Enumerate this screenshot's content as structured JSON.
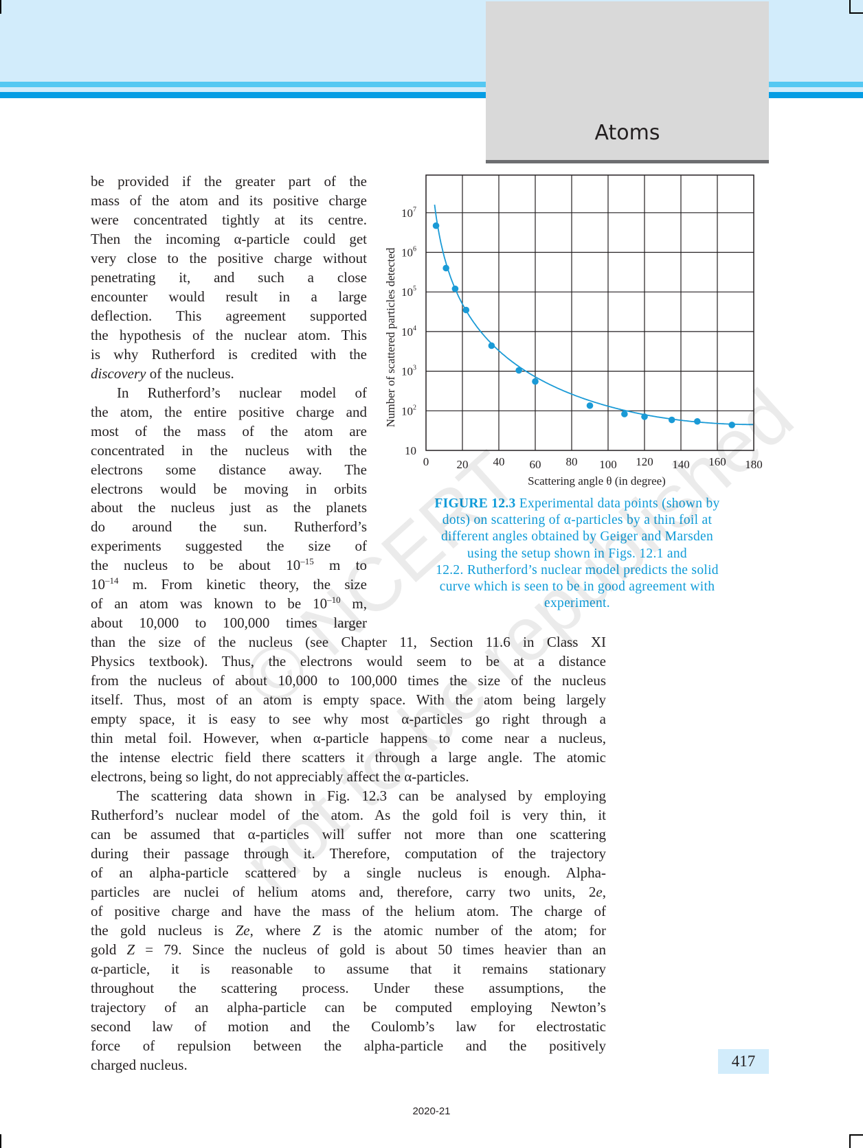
{
  "header": {
    "chapter_title": "Atoms",
    "band_color": "#d2ecfb",
    "stripe_color": "#049de4"
  },
  "watermark": {
    "line1": "© NCERT",
    "line2": "not to be republished"
  },
  "body_lines": [
    [
      [
        "be provided if the greater part of the"
      ]
    ],
    [
      [
        "mass of the atom and its positive charge"
      ]
    ],
    [
      [
        "were concentrated tightly at its centre."
      ]
    ],
    [
      [
        "Then the incoming α-particle could get"
      ]
    ],
    [
      [
        "very close to the positive charge without"
      ]
    ],
    [
      [
        "penetrating it, and such a close"
      ]
    ],
    [
      [
        "encounter would result in a large"
      ]
    ],
    [
      [
        "deflection. This agreement supported"
      ]
    ],
    [
      [
        "the hypothesis of the nuclear atom. This"
      ]
    ],
    [
      [
        "is why Rutherford is credited with the"
      ]
    ],
    [
      [
        "discovery",
        "i"
      ],
      [
        " of the nucleus."
      ]
    ],
    [
      [
        "In Rutherford’s nuclear model of"
      ]
    ],
    [
      [
        "the atom, the entire positive charge and"
      ]
    ],
    [
      [
        "most of the mass of the atom are"
      ]
    ],
    [
      [
        "concentrated in the nucleus with the"
      ]
    ],
    [
      [
        "electrons some distance away. The"
      ]
    ],
    [
      [
        "electrons would be moving in orbits"
      ]
    ],
    [
      [
        "about the nucleus just as the planets"
      ]
    ],
    [
      [
        "do around the sun. Rutherford’s"
      ]
    ],
    [
      [
        "experiments suggested the size of"
      ]
    ],
    [
      [
        "the nucleus to be about 10"
      ],
      [
        "–15",
        "s"
      ],
      [
        " m to"
      ]
    ],
    [
      [
        "10"
      ],
      [
        "–14",
        "s"
      ],
      [
        " m. From kinetic theory, the size"
      ]
    ],
    [
      [
        "of an atom was known to be 10"
      ],
      [
        "–10",
        "s"
      ],
      [
        " m,"
      ]
    ],
    [
      [
        "about 10,000 to 100,000 times larger"
      ]
    ],
    [
      [
        "than the size of the nucleus (see Chapter 11, Section 11.6 in Class XI"
      ]
    ],
    [
      [
        "Physics textbook). Thus, the electrons would seem to be at a distance"
      ]
    ],
    [
      [
        "from the nucleus of about 10,000 to 100,000 times the size of the nucleus"
      ]
    ],
    [
      [
        "itself. Thus, most of an atom is empty space. With the atom being largely"
      ]
    ],
    [
      [
        "empty space, it is easy to see why most α-particles go right through a"
      ]
    ],
    [
      [
        "thin metal foil. However, when α-particle happens to come near a nucleus,"
      ]
    ],
    [
      [
        "the intense electric field there scatters it through a large angle. The atomic"
      ]
    ],
    [
      [
        "electrons, being so light, do not appreciably affect the α-particles."
      ]
    ],
    [
      [
        "The scattering data shown in Fig. 12.3 can be analysed by employing"
      ]
    ],
    [
      [
        "Rutherford’s nuclear model of the atom. As the gold foil is very thin, it"
      ]
    ],
    [
      [
        "can be assumed that α-particles will suffer not more than one scattering"
      ]
    ],
    [
      [
        "during their passage through it. Therefore, computation of the trajectory"
      ]
    ],
    [
      [
        "of an alpha-particle scattered by a single nucleus is enough. Alpha-"
      ]
    ],
    [
      [
        "particles are nuclei of helium atoms and, therefore, carry two units, 2"
      ],
      [
        "e",
        "i"
      ],
      [
        ","
      ]
    ],
    [
      [
        "of positive charge and have the mass of the helium atom. The charge of"
      ]
    ],
    [
      [
        "the gold nucleus is "
      ],
      [
        "Ze",
        "i"
      ],
      [
        ", where "
      ],
      [
        "Z",
        "i"
      ],
      [
        " is the atomic number of the atom; for"
      ]
    ],
    [
      [
        "gold "
      ],
      [
        "Z",
        "i"
      ],
      [
        " = 79. Since the nucleus of gold is about 50 times heavier than an"
      ]
    ],
    [
      [
        "α-particle, it is reasonable to assume that it remains stationary"
      ]
    ],
    [
      [
        "throughout the scattering process. Under these assumptions, the"
      ]
    ],
    [
      [
        "trajectory of an alpha-particle can be computed employing Newton’s"
      ]
    ],
    [
      [
        "second law of motion and the Coulomb’s law for electrostatic"
      ]
    ],
    [
      [
        "force of repulsion between the alpha-particle and the positively"
      ]
    ],
    [
      [
        "charged nucleus."
      ]
    ]
  ],
  "chart_data": {
    "type": "scatter",
    "xlabel": "Scattering angle  θ (in degree)",
    "ylabel": "Number of  scattered particles detected",
    "xlim": [
      0,
      180
    ],
    "ylim": [
      10,
      10000000
    ],
    "y_scale": "log",
    "grid": true,
    "x_ticks": [
      "0",
      "20",
      "40",
      "60",
      "80",
      "100",
      "120",
      "140",
      "160",
      "180"
    ],
    "y_ticks": [
      {
        "base": "10",
        "exp": ""
      },
      {
        "base": "10",
        "exp": "2"
      },
      {
        "base": "10",
        "exp": "3"
      },
      {
        "base": "10",
        "exp": "4"
      },
      {
        "base": "10",
        "exp": "5"
      },
      {
        "base": "10",
        "exp": "6"
      },
      {
        "base": "10",
        "exp": "7"
      }
    ],
    "points": {
      "x": [
        5.5,
        11,
        16,
        22,
        36,
        51,
        60,
        90,
        109,
        120,
        135,
        149,
        168
      ],
      "y": [
        4700000,
        400000,
        120000,
        35000,
        4400,
        1050,
        550,
        135,
        83,
        71,
        59,
        54,
        44
      ]
    },
    "curve": {
      "model": "Rutherford 1/sin^4(θ/2)",
      "value_at_180": 45
    },
    "color": "#1a9ad6"
  },
  "caption": {
    "label": "FIGURE 12.3",
    "lines": [
      " Experimental data points (shown by",
      "dots) on scattering of α-particles by a thin foil at",
      "different angles obtained by Geiger and Marsden",
      "using the setup shown in Figs. 12.1 and",
      "12.2. Rutherford’s nuclear model predicts the solid",
      "curve which is seen to be in good agreement with",
      "experiment."
    ]
  },
  "page_number": "417",
  "footer": "2020-21"
}
